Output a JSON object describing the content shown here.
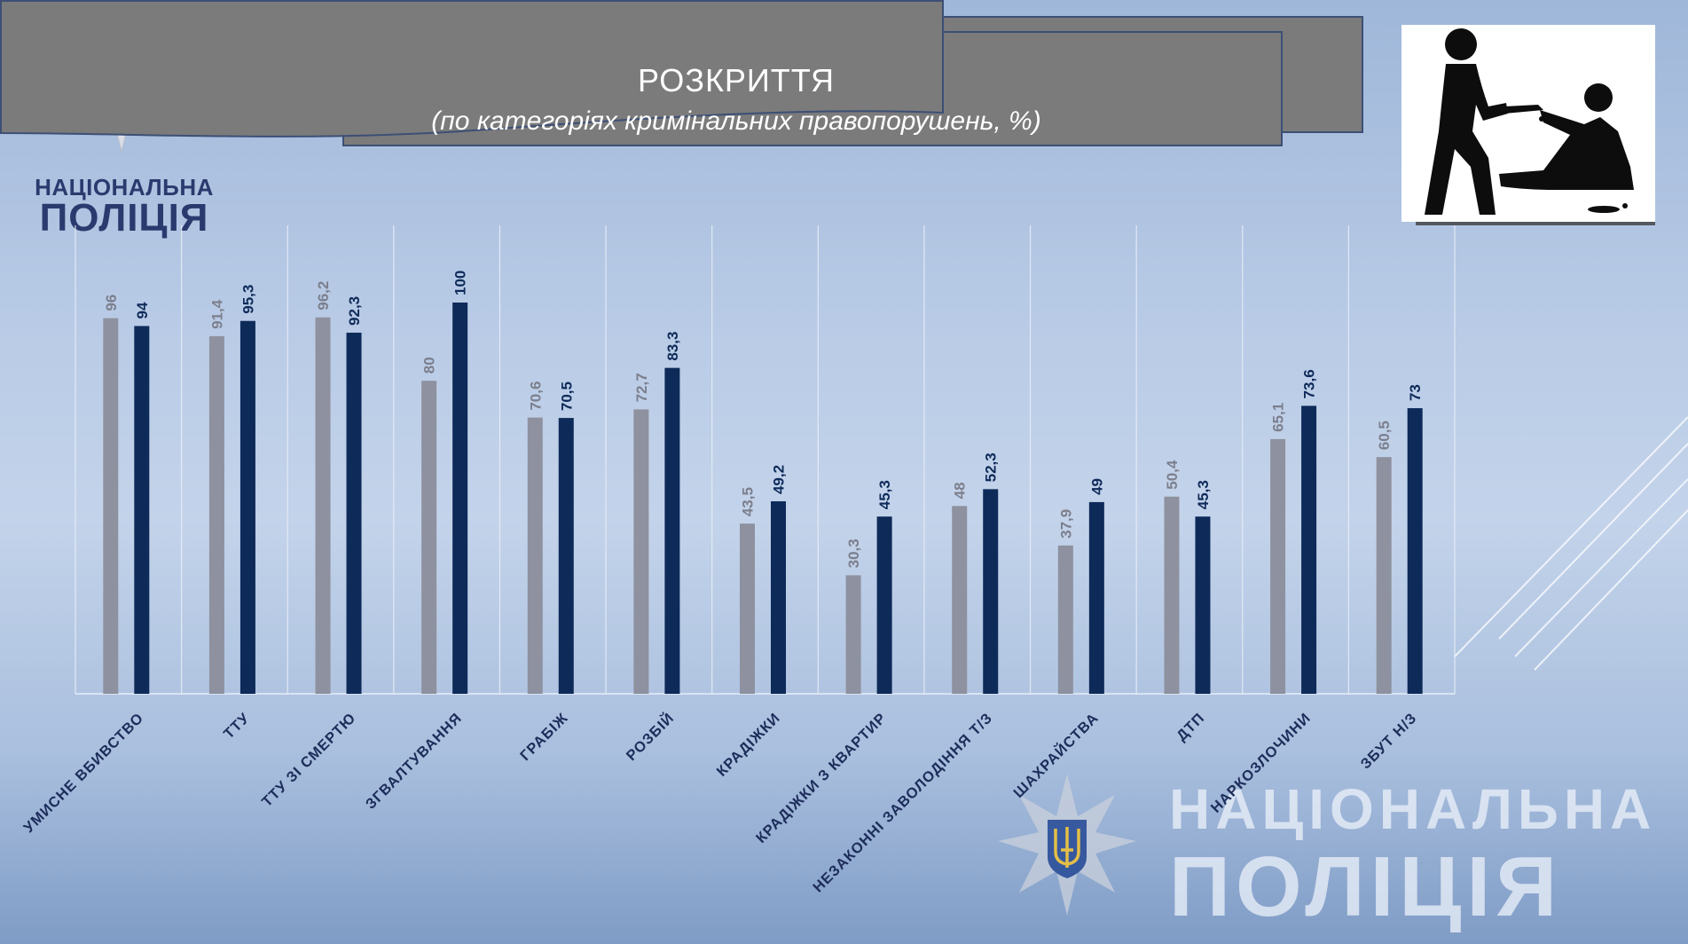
{
  "header": {
    "title": "РОЗКРИТТЯ",
    "subtitle": "(по категоріях кримінальних правопорушень, %)"
  },
  "brand": {
    "line1": "НАЦІОНАЛЬНА",
    "line2": "ПОЛІЦІЯ"
  },
  "watermark": {
    "line1": "НАЦІОНАЛЬНА",
    "line2": "ПОЛІЦІЯ"
  },
  "colors": {
    "series_grey": "#8e919f",
    "series_navy": "#0e2a59",
    "banner": "#7b7b7b",
    "brand_text": "#2b3a6e"
  },
  "icons": [
    "police-star-emblem",
    "trident-icon",
    "knife-attack-pictogram"
  ],
  "chart_data": {
    "type": "bar",
    "categories": [
      "УМИСНЕ ВБИВСТВО",
      "ТТУ",
      "ТТУ ЗІ СМЕРТЮ",
      "ЗГВАЛТУВАННЯ",
      "ГРАБІЖ",
      "РОЗБІЙ",
      "КРАДІЖКИ",
      "КРАДІЖКИ З КВАРТИР",
      "НЕЗАКОННІ ЗАВОЛОДІННЯ Т/З",
      "ШАХРАЙСТВА",
      "ДТП",
      "НАРКОЗЛОЧИНИ",
      "ЗБУТ Н/З"
    ],
    "series": [
      {
        "values": [
          96,
          91.4,
          96.2,
          80,
          70.6,
          72.7,
          43.5,
          30.3,
          48,
          37.9,
          50.4,
          65.1,
          60.5
        ],
        "labels": [
          "96",
          "91,4",
          "96,2",
          "80",
          "70,6",
          "72,7",
          "43,5",
          "30,3",
          "48",
          "37,9",
          "50,4",
          "65,1",
          "60,5"
        ],
        "color": "#8e919f"
      },
      {
        "values": [
          94,
          95.3,
          92.3,
          100,
          70.5,
          83.3,
          49.2,
          45.3,
          52.3,
          49,
          45.3,
          73.6,
          73
        ],
        "labels": [
          "94",
          "95,3",
          "92,3",
          "100",
          "70,5",
          "83,3",
          "49,2",
          "45,3",
          "52,3",
          "49",
          "45,3",
          "73,6",
          "73"
        ],
        "color": "#0e2a59"
      }
    ],
    "ylim": [
      0,
      100
    ],
    "grid": "vertical separators",
    "legend": "none"
  }
}
